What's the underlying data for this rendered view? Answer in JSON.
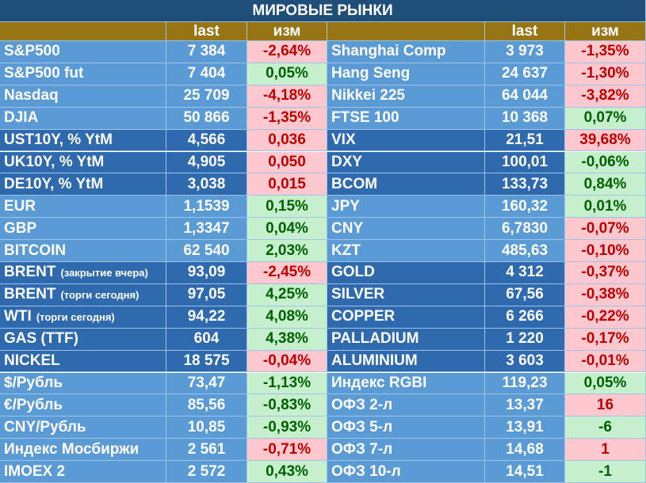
{
  "header": {
    "title": "МИРОВЫЕ РЫНКИ",
    "columns": [
      "last",
      "изм",
      "last",
      "изм"
    ]
  },
  "groups": [
    {
      "shade": "light",
      "rows": [
        {
          "left": {
            "name": "S&P500",
            "last": "7 384",
            "change": "-2,64%",
            "tone": "red"
          },
          "right": {
            "name": "Shanghai Comp",
            "last": "3 973",
            "change": "-1,35%",
            "tone": "red"
          }
        },
        {
          "left": {
            "name": "S&P500 fut",
            "last": "7 404",
            "change": "0,05%",
            "tone": "green"
          },
          "right": {
            "name": "Hang Seng",
            "last": "24 637",
            "change": "-1,30%",
            "tone": "red"
          }
        },
        {
          "left": {
            "name": "Nasdaq",
            "last": "25 709",
            "change": "-4,18%",
            "tone": "red"
          },
          "right": {
            "name": "Nikkei 225",
            "last": "64 044",
            "change": "-3,82%",
            "tone": "red"
          }
        },
        {
          "left": {
            "name": "DJIA",
            "last": "50 866",
            "change": "-1,35%",
            "tone": "red"
          },
          "right": {
            "name": "FTSE 100",
            "last": "10 368",
            "change": "0,07%",
            "tone": "green"
          }
        }
      ]
    },
    {
      "shade": "dark",
      "rows": [
        {
          "left": {
            "name": "UST10Y, % YtM",
            "last": "4,566",
            "change": "0,036",
            "tone": "red"
          },
          "right": {
            "name": "VIX",
            "last": "21,51",
            "change": "39,68%",
            "tone": "red"
          }
        },
        {
          "left": {
            "name": "UK10Y, % YtM",
            "last": "4,905",
            "change": "0,050",
            "tone": "red"
          },
          "right": {
            "name": "DXY",
            "last": "100,01",
            "change": "-0,06%",
            "tone": "green"
          }
        },
        {
          "left": {
            "name": "DE10Y, % YtM",
            "last": "3,038",
            "change": "0,015",
            "tone": "red"
          },
          "right": {
            "name": "BCOM",
            "last": "133,73",
            "change": "0,84%",
            "tone": "green"
          }
        }
      ]
    },
    {
      "shade": "light",
      "rows": [
        {
          "left": {
            "name": "EUR",
            "last": "1,1539",
            "change": "0,15%",
            "tone": "green"
          },
          "right": {
            "name": "JPY",
            "last": "160,32",
            "change": "0,01%",
            "tone": "green"
          }
        },
        {
          "left": {
            "name": "GBP",
            "last": "1,3347",
            "change": "0,04%",
            "tone": "green"
          },
          "right": {
            "name": "CNY",
            "last": "6,7830",
            "change": "-0,07%",
            "tone": "red"
          }
        },
        {
          "left": {
            "name": "BITCOIN",
            "last": "62 540",
            "change": "2,03%",
            "tone": "green"
          },
          "right": {
            "name": "KZT",
            "last": "485,63",
            "change": "-0,10%",
            "tone": "red"
          }
        }
      ]
    },
    {
      "shade": "dark",
      "rows": [
        {
          "left": {
            "name": "BRENT",
            "note": "(закрытие вчера)",
            "last": "93,09",
            "change": "-2,45%",
            "tone": "red"
          },
          "right": {
            "name": "GOLD",
            "last": "4 312",
            "change": "-0,37%",
            "tone": "red"
          }
        },
        {
          "left": {
            "name": "BRENT",
            "note": "(торги сегодня)",
            "last": "97,05",
            "change": "4,25%",
            "tone": "green"
          },
          "right": {
            "name": "SILVER",
            "last": "67,56",
            "change": "-0,38%",
            "tone": "red"
          }
        },
        {
          "left": {
            "name": "WTI",
            "note": "(торги сегодня)",
            "last": "94,22",
            "change": "4,08%",
            "tone": "green"
          },
          "right": {
            "name": "COPPER",
            "last": "6 266",
            "change": "-0,22%",
            "tone": "red"
          }
        },
        {
          "left": {
            "name": "GAS (TTF)",
            "last": "604",
            "change": "4,38%",
            "tone": "green"
          },
          "right": {
            "name": "PALLADIUM",
            "last": "1 220",
            "change": "-0,17%",
            "tone": "red"
          }
        },
        {
          "left": {
            "name": "NICKEL",
            "last": "18 575",
            "change": "-0,04%",
            "tone": "red"
          },
          "right": {
            "name": "ALUMINIUM",
            "last": "3 603",
            "change": "-0,01%",
            "tone": "red"
          }
        }
      ]
    },
    {
      "shade": "light",
      "rows": [
        {
          "left": {
            "name": "$/Рубль",
            "last": "73,47",
            "change": "-1,13%",
            "tone": "green"
          },
          "right": {
            "name": "Индекс RGBI",
            "last": "119,23",
            "change": "0,05%",
            "tone": "green"
          }
        },
        {
          "left": {
            "name": "€/Рубль",
            "last": "85,56",
            "change": "-0,83%",
            "tone": "green"
          },
          "right": {
            "name": "ОФЗ 2-л",
            "last": "13,37",
            "change": "16",
            "tone": "red"
          }
        },
        {
          "left": {
            "name": "CNY/Рубль",
            "last": "10,85",
            "change": "-0,93%",
            "tone": "green"
          },
          "right": {
            "name": "ОФЗ 5-л",
            "last": "13,91",
            "change": "-6",
            "tone": "green"
          }
        },
        {
          "left": {
            "name": "Индекс Мосбиржи",
            "last": "2 561",
            "change": "-0,71%",
            "tone": "red"
          },
          "right": {
            "name": "ОФЗ 7-л",
            "last": "14,68",
            "change": "1",
            "tone": "red"
          }
        },
        {
          "left": {
            "name": "IMOEX 2",
            "last": "2 572",
            "change": "0,43%",
            "tone": "green"
          },
          "right": {
            "name": "ОФЗ 10-л",
            "last": "14,51",
            "change": "-1",
            "tone": "green"
          }
        }
      ]
    }
  ]
}
